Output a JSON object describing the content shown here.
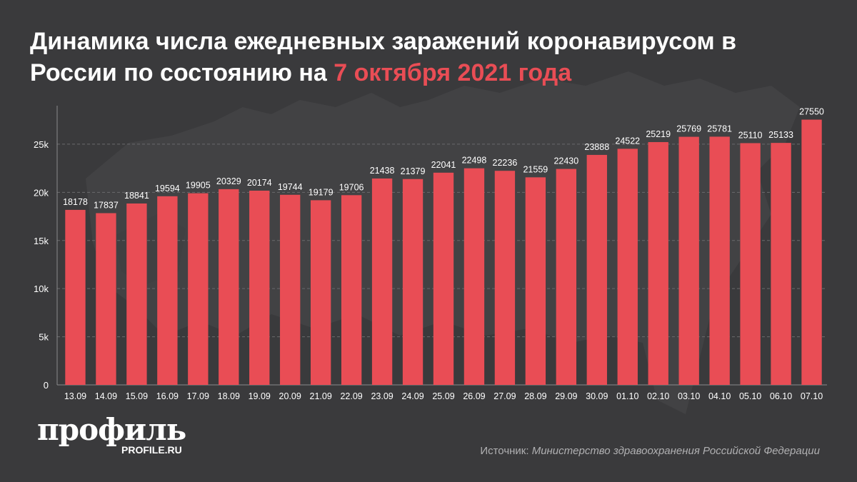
{
  "header": {
    "title_main": "Динамика числа ежедневных заражений коронавирусом в России по состоянию на ",
    "title_accent": "7 октября 2021 года"
  },
  "colors": {
    "background": "#3a3a3c",
    "bar": "#e94d55",
    "accent": "#e94d55",
    "grid": "#6a6a6c",
    "text": "#ffffff"
  },
  "chart_data": {
    "type": "bar",
    "categories": [
      "13.09",
      "14.09",
      "15.09",
      "16.09",
      "17.09",
      "18.09",
      "19.09",
      "20.09",
      "21.09",
      "22.09",
      "23.09",
      "24.09",
      "25.09",
      "26.09",
      "27.09",
      "28.09",
      "29.09",
      "30.09",
      "01.10",
      "02.10",
      "03.10",
      "04.10",
      "05.10",
      "06.10",
      "07.10"
    ],
    "values": [
      18178,
      17837,
      18841,
      19594,
      19905,
      20329,
      20174,
      19744,
      19179,
      19706,
      21438,
      21379,
      22041,
      22498,
      22236,
      21559,
      22430,
      23888,
      24522,
      25219,
      25769,
      25781,
      25110,
      25133,
      27550
    ],
    "ylim": [
      0,
      29000
    ],
    "yticks": [
      0,
      5000,
      10000,
      15000,
      20000,
      25000
    ],
    "ytick_labels": [
      "0",
      "5k",
      "10k",
      "15k",
      "20k",
      "25k"
    ],
    "grid": true,
    "data_labels": true
  },
  "footer": {
    "logo_text": "профиль",
    "logo_domain": "PROFILE.RU",
    "source_prefix": "Источник: ",
    "source_org": "Министерство здравоохранения Российской Федерации"
  }
}
